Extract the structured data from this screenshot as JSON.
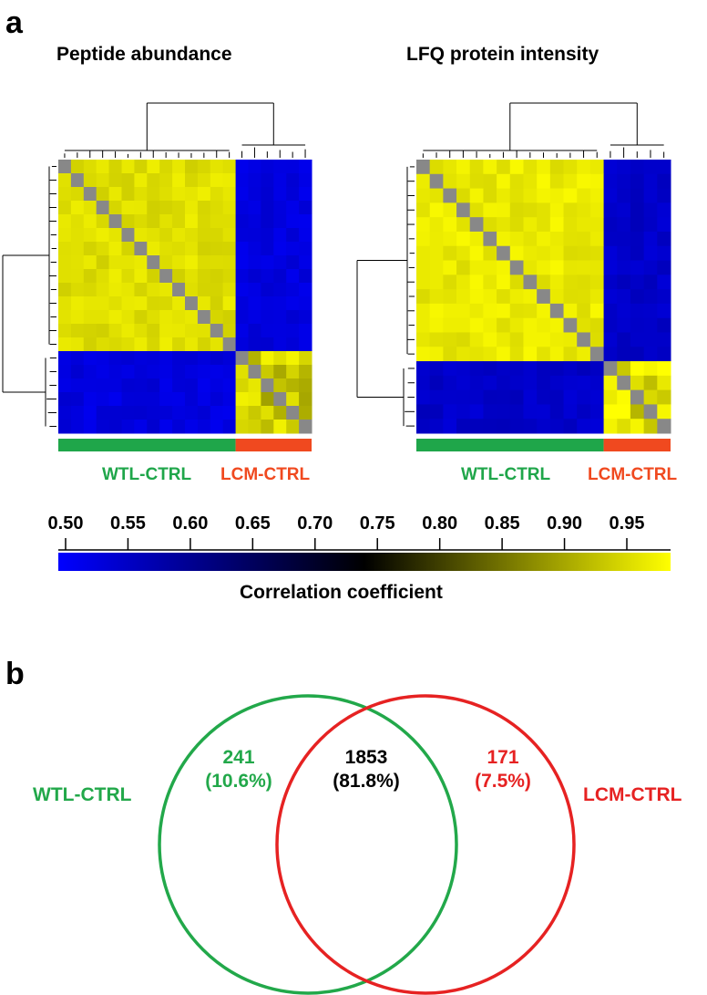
{
  "panel_a_label": "a",
  "panel_b_label": "b",
  "colors": {
    "wtl": "#1fa64a",
    "lcm": "#f0491f",
    "venn_wtl": "#22a84a",
    "venn_lcm": "#e62222",
    "low": "#0000ff",
    "mid": "#000000",
    "high": "#ffff00",
    "diag": "#888888"
  },
  "chart_data": [
    {
      "type": "heatmap",
      "title": "Peptide abundance",
      "groups": [
        {
          "name": "WTL-CTRL",
          "n": 14
        },
        {
          "name": "LCM-CTRL",
          "n": 6
        }
      ],
      "within_wtl_r": 0.95,
      "within_lcm_r": 0.93,
      "between_r": 0.53
    },
    {
      "type": "heatmap",
      "title": "LFQ protein intensity",
      "groups": [
        {
          "name": "WTL-CTRL",
          "n": 14
        },
        {
          "name": "LCM-CTRL",
          "n": 5
        }
      ],
      "within_wtl_r": 0.96,
      "within_lcm_r": 0.95,
      "between_r": 0.55
    },
    {
      "type": "colorbar",
      "label": "Correlation coefficient",
      "ticks": [
        "0.50",
        "0.55",
        "0.60",
        "0.65",
        "0.70",
        "0.75",
        "0.80",
        "0.85",
        "0.90",
        "0.95"
      ],
      "range": [
        0.5,
        0.98
      ]
    },
    {
      "type": "venn",
      "sets": [
        {
          "name": "WTL-CTRL",
          "only": "241",
          "only_pct": "(10.6%)"
        },
        {
          "name": "LCM-CTRL",
          "only": "171",
          "only_pct": "(7.5%)"
        }
      ],
      "overlap": "1853",
      "overlap_pct": "(81.8%)"
    }
  ]
}
